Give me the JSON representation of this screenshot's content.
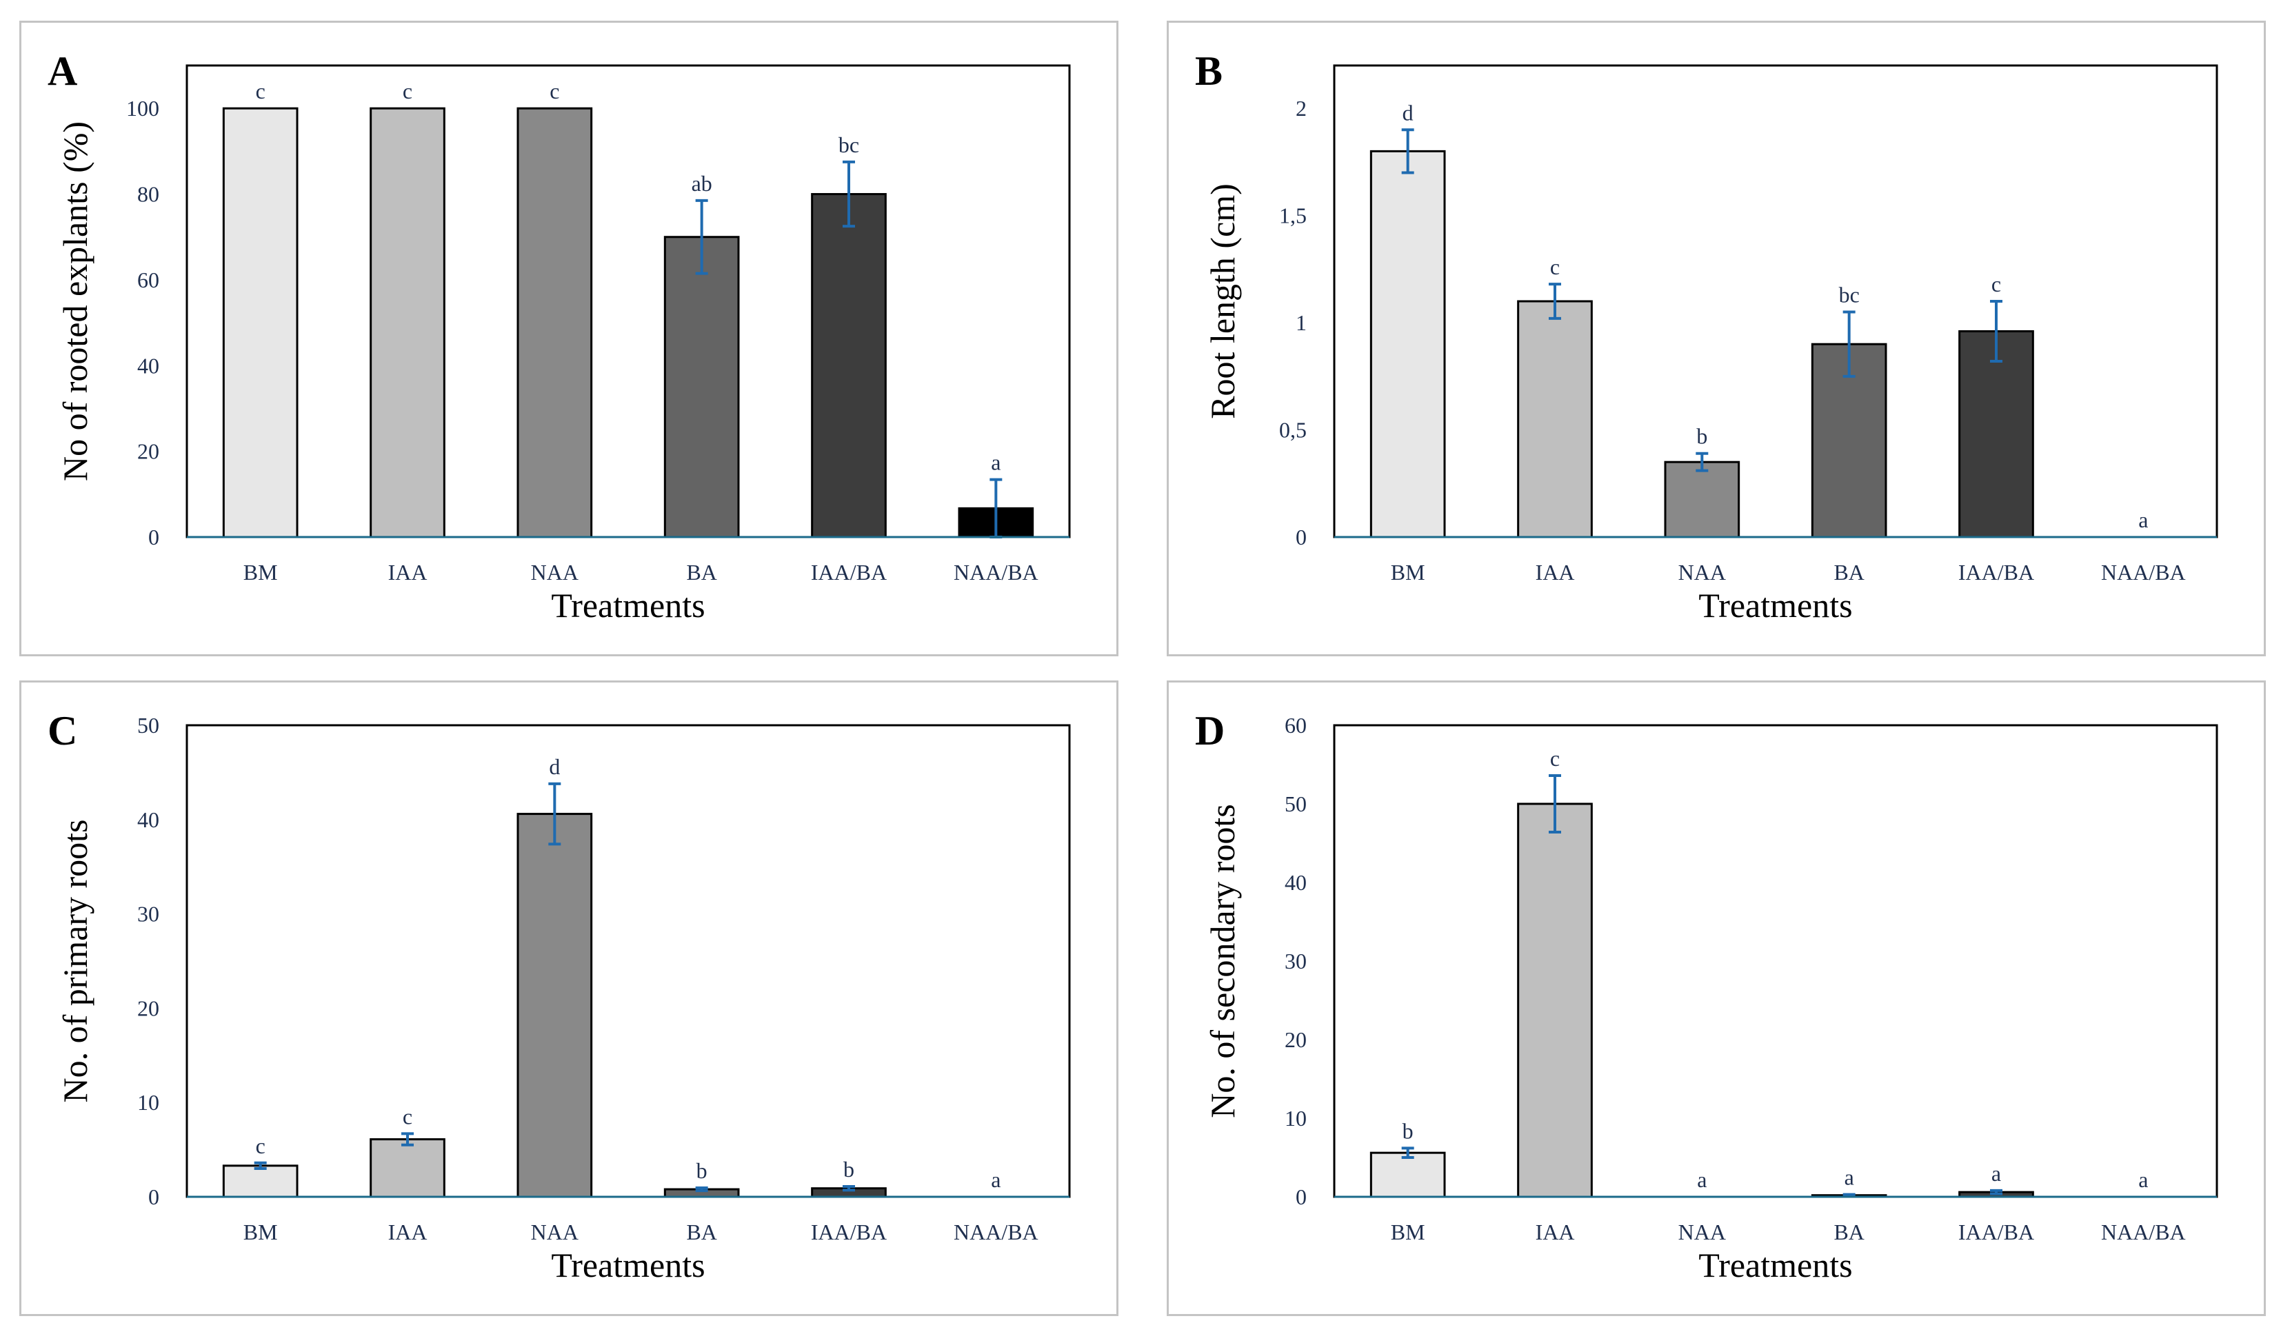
{
  "chart_data": [
    {
      "type": "bar",
      "panel_label": "A",
      "xlabel": "Treatments",
      "ylabel": "No of rooted explants (%)",
      "categories": [
        "BM",
        "IAA",
        "NAA",
        "BA",
        "IAA/BA",
        "NAA/BA"
      ],
      "values": [
        100,
        100,
        100,
        70,
        80,
        6.7
      ],
      "errors": [
        0,
        0,
        0,
        8.5,
        7.5,
        6.7
      ],
      "significance": [
        "c",
        "c",
        "c",
        "ab",
        "bc",
        "a"
      ],
      "ylim": [
        0,
        110
      ],
      "yticks": [
        0,
        20,
        40,
        60,
        80,
        100
      ],
      "ytick_labels": [
        "0",
        "20",
        "40",
        "60",
        "80",
        "100"
      ],
      "bar_colors": [
        "#e7e7e7",
        "#bfbfbf",
        "#898989",
        "#646464",
        "#3d3d3d",
        "#000000"
      ]
    },
    {
      "type": "bar",
      "panel_label": "B",
      "xlabel": "Treatments",
      "ylabel": "Root length (cm)",
      "categories": [
        "BM",
        "IAA",
        "NAA",
        "BA",
        "IAA/BA",
        "NAA/BA"
      ],
      "values": [
        1.8,
        1.1,
        0.35,
        0.9,
        0.96,
        0
      ],
      "errors": [
        0.1,
        0.08,
        0.04,
        0.15,
        0.14,
        0
      ],
      "significance": [
        "d",
        "c",
        "b",
        "bc",
        "c",
        "a"
      ],
      "ylim": [
        0,
        2.2
      ],
      "yticks": [
        0,
        0.5,
        1,
        1.5,
        2
      ],
      "ytick_labels": [
        "0",
        "0,5",
        "1",
        "1,5",
        "2"
      ],
      "bar_colors": [
        "#e7e7e7",
        "#bfbfbf",
        "#898989",
        "#646464",
        "#3d3d3d",
        "#000000"
      ]
    },
    {
      "type": "bar",
      "panel_label": "C",
      "xlabel": "Treatments",
      "ylabel": "No. of primary roots",
      "categories": [
        "BM",
        "IAA",
        "NAA",
        "BA",
        "IAA/BA",
        "NAA/BA"
      ],
      "values": [
        3.3,
        6.1,
        40.6,
        0.8,
        0.9,
        0
      ],
      "errors": [
        0.3,
        0.6,
        3.2,
        0.15,
        0.2,
        0
      ],
      "significance": [
        "c",
        "c",
        "d",
        "b",
        "b",
        "a"
      ],
      "ylim": [
        0,
        50
      ],
      "yticks": [
        0,
        10,
        20,
        30,
        40,
        50
      ],
      "ytick_labels": [
        "0",
        "10",
        "20",
        "30",
        "40",
        "50"
      ],
      "bar_colors": [
        "#e7e7e7",
        "#bfbfbf",
        "#898989",
        "#646464",
        "#3d3d3d",
        "#000000"
      ]
    },
    {
      "type": "bar",
      "panel_label": "D",
      "xlabel": "Treatments",
      "ylabel": "No. of secondary roots",
      "categories": [
        "BM",
        "IAA",
        "NAA",
        "BA",
        "IAA/BA",
        "NAA/BA"
      ],
      "values": [
        5.6,
        50,
        0,
        0.2,
        0.6,
        0
      ],
      "errors": [
        0.6,
        3.6,
        0,
        0.1,
        0.2,
        0
      ],
      "significance": [
        "b",
        "c",
        "a",
        "a",
        "a",
        "a"
      ],
      "ylim": [
        0,
        60
      ],
      "yticks": [
        0,
        10,
        20,
        30,
        40,
        50,
        60
      ],
      "ytick_labels": [
        "0",
        "10",
        "20",
        "30",
        "40",
        "50",
        "60"
      ],
      "bar_colors": [
        "#e7e7e7",
        "#bfbfbf",
        "#898989",
        "#646464",
        "#3d3d3d",
        "#000000"
      ]
    }
  ]
}
